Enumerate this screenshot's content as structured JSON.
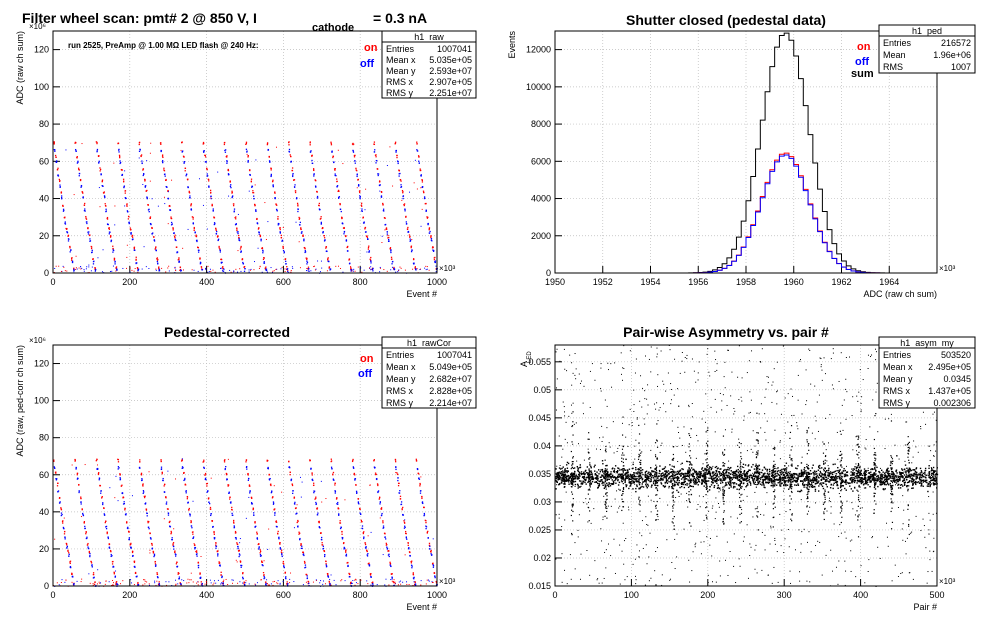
{
  "page": {
    "title_main": "Filter wheel scan: pmt#   2 @   850 V, I",
    "title_sub": "cathode",
    "title_tail": " = 0.3 nA"
  },
  "legend_labels": {
    "on": "on",
    "off": "off",
    "sum": "sum"
  },
  "colors": {
    "on": "#ff0000",
    "off": "#0000ff",
    "sum": "#000000",
    "frame": "#000000",
    "grid": "#bbbbbb"
  },
  "panels": {
    "raw": {
      "note": "run 2525, PreAmp @ 1.00 MΩ  LED flash @  240 Hz:",
      "stats": {
        "name": "h1_raw",
        "rows": [
          {
            "label": "Entries",
            "value": "1007041"
          },
          {
            "label": "Mean x",
            "value": "5.035e+05"
          },
          {
            "label": "Mean y",
            "value": "2.593e+07"
          },
          {
            "label": "RMS x",
            "value": "2.907e+05"
          },
          {
            "label": "RMS y",
            "value": "2.251e+07"
          }
        ]
      }
    },
    "ped": {
      "stats": {
        "name": "h1_ped",
        "rows": [
          {
            "label": "Entries",
            "value": "216572"
          },
          {
            "label": "Mean",
            "value": "1.96e+06"
          },
          {
            "label": "RMS",
            "value": "1007"
          }
        ]
      }
    },
    "cor": {
      "stats": {
        "name": "h1_rawCor",
        "rows": [
          {
            "label": "Entries",
            "value": "1007041"
          },
          {
            "label": "Mean x",
            "value": "5.049e+05"
          },
          {
            "label": "Mean y",
            "value": "2.682e+07"
          },
          {
            "label": "RMS x",
            "value": "2.828e+05"
          },
          {
            "label": "RMS y",
            "value": "2.214e+07"
          }
        ]
      }
    },
    "asym": {
      "stats": {
        "name": "h1_asym_my",
        "rows": [
          {
            "label": "Entries",
            "value": "503520"
          },
          {
            "label": "Mean x",
            "value": "2.495e+05"
          },
          {
            "label": "Mean y",
            "value": "0.0345"
          },
          {
            "label": "RMS x",
            "value": "1.437e+05"
          },
          {
            "label": "RMS y",
            "value": "0.002306"
          }
        ]
      }
    }
  },
  "chart_data": [
    {
      "id": "raw",
      "type": "scatter",
      "title": "",
      "xlabel": "Event #",
      "ylabel": "ADC (raw ch sum)",
      "xlim": [
        0,
        1000
      ],
      "ylim": [
        0,
        130
      ],
      "x_multiplier": "×10³",
      "y_multiplier": "×10⁶",
      "xticks": [
        0,
        200,
        400,
        600,
        800,
        1000
      ],
      "yticks": [
        0,
        20,
        40,
        60,
        80,
        100,
        120
      ],
      "grid": true,
      "series": [
        {
          "name": "on",
          "step_levels": [
            70,
            63,
            56,
            50,
            44,
            37,
            30,
            24,
            20,
            14,
            8,
            3
          ]
        },
        {
          "name": "off",
          "step_levels": [
            66,
            60,
            53,
            47,
            41,
            34,
            27,
            22,
            18,
            12,
            6,
            2
          ]
        }
      ]
    },
    {
      "id": "ped",
      "type": "line",
      "title": "Shutter closed (pedestal data)",
      "xlabel": "ADC (raw ch sum)",
      "ylabel": "Events",
      "xlim": [
        1950,
        1966
      ],
      "ylim": [
        0,
        13000
      ],
      "x_multiplier": "×10³",
      "xticks": [
        1950,
        1952,
        1954,
        1956,
        1958,
        1960,
        1962,
        1964
      ],
      "yticks": [
        0,
        2000,
        4000,
        6000,
        8000,
        10000,
        12000
      ],
      "grid": true,
      "series": [
        {
          "name": "sum",
          "peak_x": 1959.65,
          "sigma": 1.0,
          "peak_y": 12900
        },
        {
          "name": "on",
          "peak_x": 1959.65,
          "sigma": 1.0,
          "peak_y": 6450
        },
        {
          "name": "off",
          "peak_x": 1959.65,
          "sigma": 1.0,
          "peak_y": 6350
        }
      ]
    },
    {
      "id": "cor",
      "type": "scatter",
      "title": "Pedestal-corrected",
      "xlabel": "Event #",
      "ylabel": "ADC (raw, ped-corr ch sum)",
      "xlim": [
        0,
        1000
      ],
      "ylim": [
        0,
        130
      ],
      "x_multiplier": "×10³",
      "y_multiplier": "×10⁶",
      "xticks": [
        0,
        200,
        400,
        600,
        800,
        1000
      ],
      "yticks": [
        0,
        20,
        40,
        60,
        80,
        100,
        120
      ],
      "grid": true,
      "series": [
        {
          "name": "on",
          "step_levels": [
            68,
            61,
            55,
            48,
            42,
            35,
            29,
            23,
            19,
            13,
            7,
            2
          ]
        },
        {
          "name": "off",
          "step_levels": [
            64,
            58,
            51,
            45,
            39,
            32,
            26,
            21,
            17,
            11,
            5,
            1
          ]
        }
      ]
    },
    {
      "id": "asym",
      "type": "scatter",
      "title": "Pair-wise Asymmetry vs. pair #",
      "xlabel": "Pair #",
      "ylabel": "A_LED",
      "xlim": [
        0,
        500
      ],
      "ylim": [
        0.015,
        0.058
      ],
      "x_multiplier": "×10³",
      "xticks": [
        0,
        100,
        200,
        300,
        400,
        500
      ],
      "yticks": [
        0.015,
        0.02,
        0.025,
        0.03,
        0.035,
        0.04,
        0.045,
        0.05,
        0.055
      ],
      "ytick_labels": [
        "0.015",
        "0.02",
        "0.025",
        "0.03",
        "0.035",
        "0.04",
        "0.045",
        "0.05",
        "0.055"
      ],
      "grid": true,
      "band_center": 0.0345,
      "spike_pairs": [
        22,
        44,
        66,
        88,
        110,
        132,
        154,
        176,
        198,
        220,
        242,
        264,
        286,
        308,
        330,
        352,
        374,
        396,
        418,
        440,
        462
      ]
    }
  ]
}
